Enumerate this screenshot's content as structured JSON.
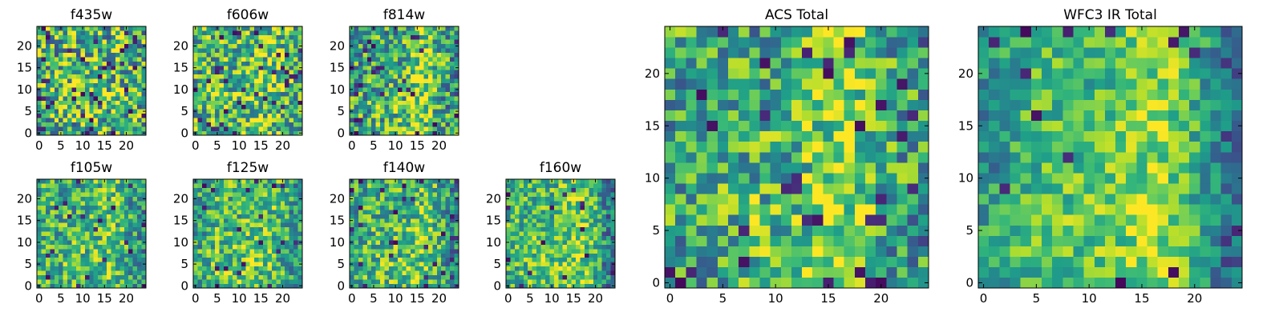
{
  "chart_data": [
    {
      "type": "heatmap",
      "title": "f435w",
      "x_ticks": [
        "0",
        "5",
        "10",
        "15",
        "20"
      ],
      "y_ticks": [
        "0",
        "5",
        "10",
        "15",
        "20"
      ],
      "xlim": [
        -0.5,
        24.5
      ],
      "ylim": [
        -0.5,
        24.5
      ],
      "colormap": "viridis",
      "grid": false
    },
    {
      "type": "heatmap",
      "title": "f606w",
      "x_ticks": [
        "0",
        "5",
        "10",
        "15",
        "20"
      ],
      "y_ticks": [
        "0",
        "5",
        "10",
        "15",
        "20"
      ],
      "xlim": [
        -0.5,
        24.5
      ],
      "ylim": [
        -0.5,
        24.5
      ],
      "colormap": "viridis",
      "grid": false
    },
    {
      "type": "heatmap",
      "title": "f814w",
      "x_ticks": [
        "0",
        "5",
        "10",
        "15",
        "20"
      ],
      "y_ticks": [
        "0",
        "5",
        "10",
        "15",
        "20"
      ],
      "xlim": [
        -0.5,
        24.5
      ],
      "ylim": [
        -0.5,
        24.5
      ],
      "colormap": "viridis",
      "grid": false
    },
    {
      "type": "heatmap",
      "title": "f105w",
      "x_ticks": [
        "0",
        "5",
        "10",
        "15",
        "20"
      ],
      "y_ticks": [
        "0",
        "5",
        "10",
        "15",
        "20"
      ],
      "xlim": [
        -0.5,
        24.5
      ],
      "ylim": [
        -0.5,
        24.5
      ],
      "colormap": "viridis",
      "grid": false
    },
    {
      "type": "heatmap",
      "title": "f125w",
      "x_ticks": [
        "0",
        "5",
        "10",
        "15",
        "20"
      ],
      "y_ticks": [
        "0",
        "5",
        "10",
        "15",
        "20"
      ],
      "xlim": [
        -0.5,
        24.5
      ],
      "ylim": [
        -0.5,
        24.5
      ],
      "colormap": "viridis",
      "grid": false
    },
    {
      "type": "heatmap",
      "title": "f140w",
      "x_ticks": [
        "0",
        "5",
        "10",
        "15",
        "20"
      ],
      "y_ticks": [
        "0",
        "5",
        "10",
        "15",
        "20"
      ],
      "xlim": [
        -0.5,
        24.5
      ],
      "ylim": [
        -0.5,
        24.5
      ],
      "colormap": "viridis",
      "grid": false
    },
    {
      "type": "heatmap",
      "title": "f160w",
      "x_ticks": [
        "0",
        "5",
        "10",
        "15",
        "20"
      ],
      "y_ticks": [
        "0",
        "5",
        "10",
        "15",
        "20"
      ],
      "xlim": [
        -0.5,
        24.5
      ],
      "ylim": [
        -0.5,
        24.5
      ],
      "colormap": "viridis",
      "grid": false
    },
    {
      "type": "heatmap",
      "title": "ACS Total",
      "x_ticks": [
        "0",
        "5",
        "10",
        "15",
        "20"
      ],
      "y_ticks": [
        "0",
        "5",
        "10",
        "15",
        "20"
      ],
      "xlim": [
        -0.5,
        24.5
      ],
      "ylim": [
        -0.5,
        24.5
      ],
      "colormap": "viridis",
      "grid": false
    },
    {
      "type": "heatmap",
      "title": "WFC3 IR Total",
      "x_ticks": [
        "0",
        "5",
        "10",
        "15",
        "20"
      ],
      "y_ticks": [
        "0",
        "5",
        "10",
        "15",
        "20"
      ],
      "xlim": [
        -0.5,
        24.5
      ],
      "ylim": [
        -0.5,
        24.5
      ],
      "colormap": "viridis",
      "grid": false
    }
  ]
}
